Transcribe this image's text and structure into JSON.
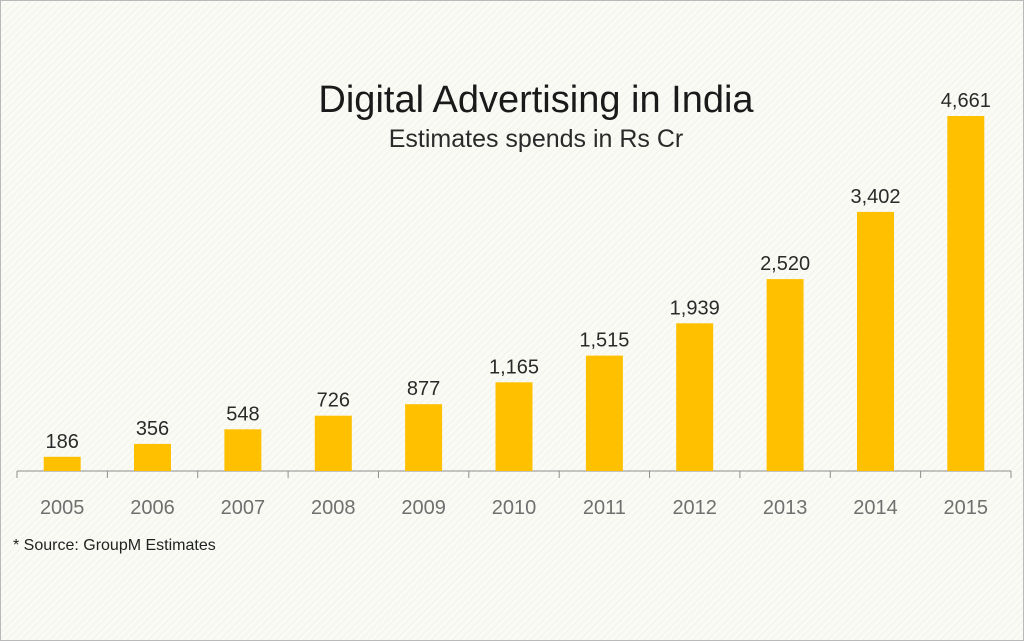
{
  "chart_data": {
    "type": "bar",
    "title": "Digital Advertising in India",
    "subtitle": "Estimates spends in Rs Cr",
    "categories": [
      "2005",
      "2006",
      "2007",
      "2008",
      "2009",
      "2010",
      "2011",
      "2012",
      "2013",
      "2014",
      "2015"
    ],
    "values": [
      186,
      356,
      548,
      726,
      877,
      1165,
      1515,
      1939,
      2520,
      3402,
      4661
    ],
    "value_labels": [
      "186",
      "356",
      "548",
      "726",
      "877",
      "1,165",
      "1,515",
      "1,939",
      "2,520",
      "3,402",
      "4,661"
    ],
    "xlabel": "",
    "ylabel": "",
    "ylim": [
      0,
      4661
    ],
    "grid": false,
    "legend": "none",
    "bar_color": "#ffc000",
    "axis_color": "#8c8c8c",
    "tick_label_color": "#6f6f6f",
    "value_label_color": "#2a2a2a"
  },
  "footnote": "* Source: GroupM Estimates"
}
